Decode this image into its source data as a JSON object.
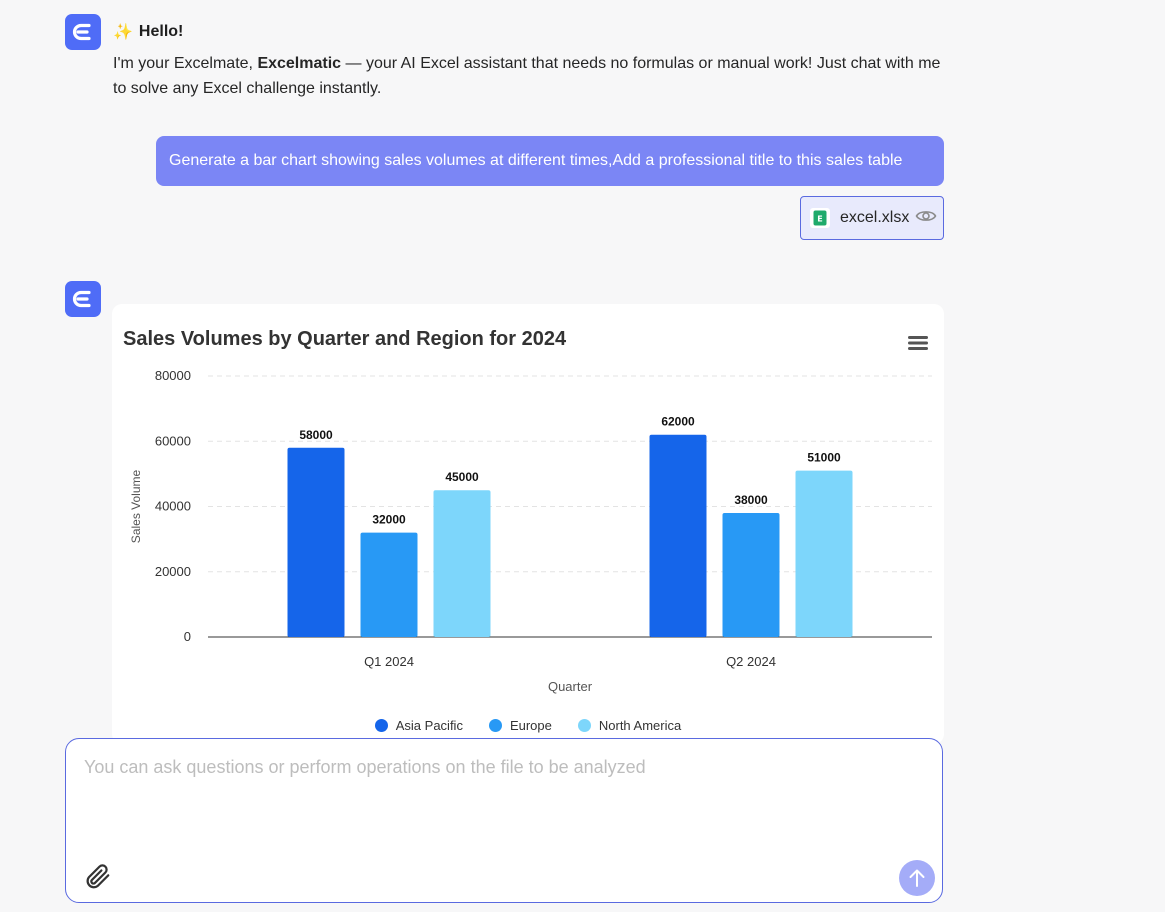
{
  "greeting": {
    "emoji": "✨",
    "hello": "Hello!",
    "intro_prefix": "I'm your Excelmate, ",
    "intro_brand": "Excelmatic",
    "intro_suffix": " — your AI Excel assistant that needs no formulas or manual work! Just chat with me to solve any Excel challenge instantly."
  },
  "user_message": {
    "text": "Generate a bar chart showing sales volumes at different times,Add a professional title to this sales table"
  },
  "attachment": {
    "file_name": "excel.xlsx"
  },
  "chart_data": {
    "type": "bar",
    "title": "Sales Volumes by Quarter and Region for 2024",
    "xlabel": "Quarter",
    "ylabel": "Sales Volume",
    "ylim": [
      0,
      80000
    ],
    "yticks": [
      0,
      20000,
      40000,
      60000,
      80000
    ],
    "categories": [
      "Q1 2024",
      "Q2 2024"
    ],
    "series": [
      {
        "name": "Asia Pacific",
        "color": "#1565ea",
        "values": [
          58000,
          62000
        ]
      },
      {
        "name": "Europe",
        "color": "#2899f5",
        "values": [
          32000,
          38000
        ]
      },
      {
        "name": "North America",
        "color": "#7dd6fb",
        "values": [
          45000,
          51000
        ]
      }
    ],
    "grid": true,
    "legend": "bottom-center"
  },
  "input": {
    "placeholder": "You can ask questions or perform operations on the file to be analyzed",
    "value": ""
  },
  "colors": {
    "accent": "#4f6cf7",
    "user_bubble": "#7b86f5",
    "send_button": "#a4acf8"
  }
}
